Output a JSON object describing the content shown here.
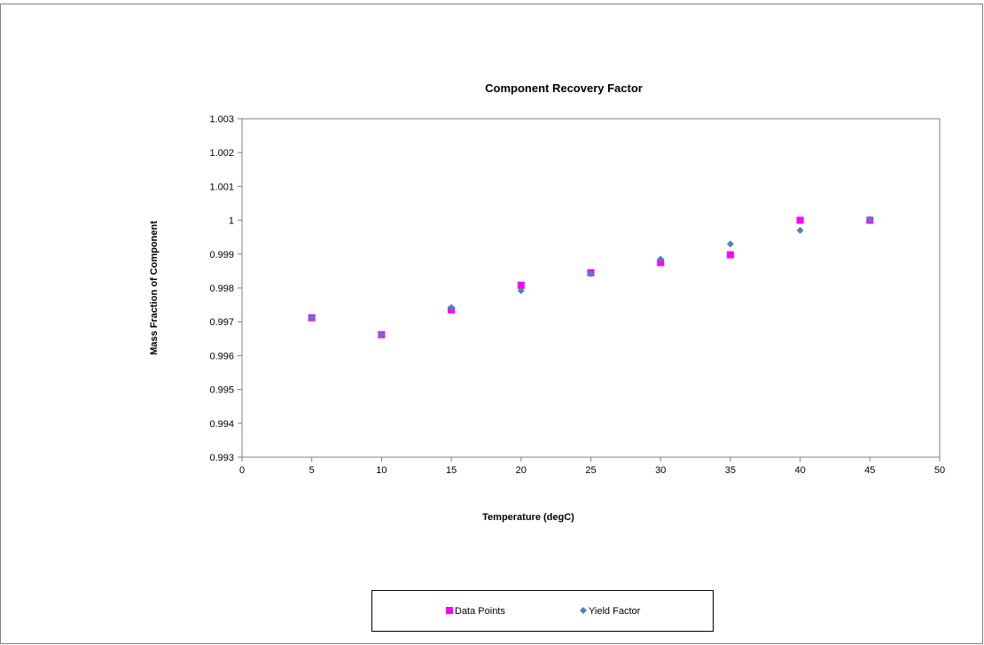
{
  "chart_data": {
    "type": "scatter",
    "title": "Component Recovery Factor",
    "xlabel": "Temperature (degC)",
    "ylabel": "Mass Fraction of Component",
    "xlim": [
      0,
      50
    ],
    "ylim": [
      0.993,
      1.003
    ],
    "x_ticks": [
      "0",
      "5",
      "10",
      "15",
      "20",
      "25",
      "30",
      "35",
      "40",
      "45",
      "50"
    ],
    "y_ticks": [
      "0.993",
      "0.994",
      "0.995",
      "0.996",
      "0.997",
      "0.998",
      "0.999",
      "1",
      "1.001",
      "1.002",
      "1.003"
    ],
    "grid": false,
    "legend_position": "bottom",
    "series": [
      {
        "name": "Data Points",
        "marker": "square",
        "color": "#FF00FF",
        "x": [
          5,
          10,
          15,
          20,
          25,
          30,
          35,
          40,
          45
        ],
        "y": [
          0.99712,
          0.99662,
          0.99735,
          0.99808,
          0.99845,
          0.99875,
          0.99898,
          1.0,
          1.0
        ]
      },
      {
        "name": "Yield Factor",
        "marker": "diamond",
        "color": "#4F81BD",
        "x": [
          5,
          10,
          15,
          20,
          25,
          30,
          35,
          40,
          45
        ],
        "y": [
          0.99712,
          0.99662,
          0.99742,
          0.99792,
          0.99842,
          0.99885,
          0.9993,
          0.9997,
          1.00003
        ]
      }
    ]
  }
}
